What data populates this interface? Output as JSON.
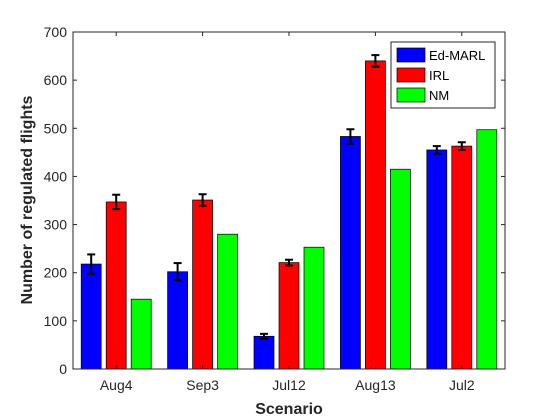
{
  "chart_data": {
    "type": "bar",
    "categories": [
      "Aug4",
      "Sep3",
      "Jul12",
      "Aug13",
      "Jul2"
    ],
    "series": [
      {
        "name": "Ed-MARL",
        "color": "#0000ff",
        "values": [
          218,
          202,
          68,
          483,
          455
        ],
        "errors": [
          20,
          18,
          5,
          15,
          8
        ]
      },
      {
        "name": "IRL",
        "color": "#ff0000",
        "values": [
          347,
          351,
          221,
          640,
          463
        ],
        "errors": [
          15,
          12,
          6,
          12,
          8
        ]
      },
      {
        "name": "NM",
        "color": "#00ff00",
        "values": [
          145,
          280,
          253,
          415,
          497
        ],
        "errors": null
      }
    ],
    "xlabel": "Scenario",
    "ylabel": "Number of regulated flights",
    "ylim": [
      0,
      700
    ],
    "yticks": [
      0,
      100,
      200,
      300,
      400,
      500,
      600,
      700
    ],
    "grid": false,
    "legend_position": "top-right"
  }
}
